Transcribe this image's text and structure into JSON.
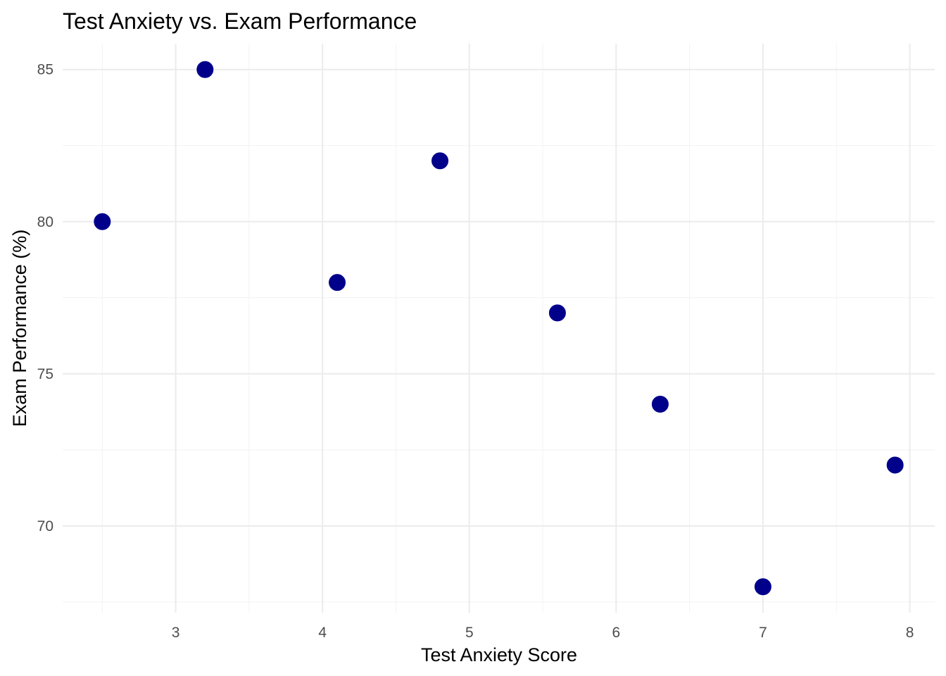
{
  "chart_data": {
    "type": "scatter",
    "title": "Test Anxiety vs. Exam Performance",
    "xlabel": "Test Anxiety Score",
    "ylabel": "Exam Performance (%)",
    "xlim": [
      2.23,
      8.17
    ],
    "ylim": [
      67.15,
      85.85
    ],
    "x_ticks": [
      3,
      4,
      5,
      6,
      7,
      8
    ],
    "y_ticks": [
      70,
      75,
      80,
      85
    ],
    "grid": true,
    "legend": "none",
    "point_color": "#00008b",
    "points": [
      {
        "x": 2.5,
        "y": 80
      },
      {
        "x": 3.2,
        "y": 85
      },
      {
        "x": 4.1,
        "y": 78
      },
      {
        "x": 4.8,
        "y": 82
      },
      {
        "x": 5.6,
        "y": 77
      },
      {
        "x": 6.3,
        "y": 74
      },
      {
        "x": 7.0,
        "y": 68
      },
      {
        "x": 7.9,
        "y": 72
      }
    ]
  }
}
